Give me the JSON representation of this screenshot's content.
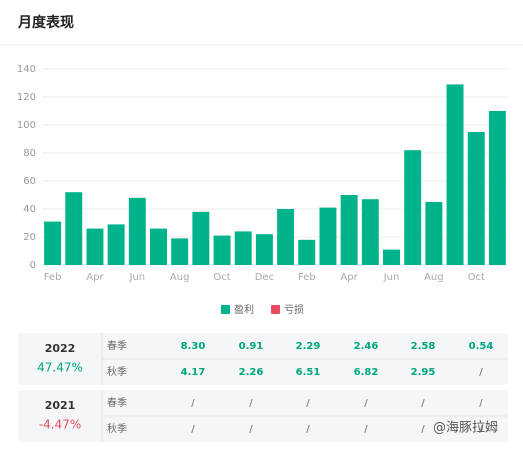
{
  "header": {
    "title": "月度表现"
  },
  "chart_data": {
    "type": "bar",
    "categories": [
      "Feb",
      null,
      "Apr",
      null,
      "Jun",
      null,
      "Aug",
      null,
      "Oct",
      null,
      "Dec",
      null,
      "Feb",
      null,
      "Apr",
      null,
      "Jun",
      null,
      "Aug",
      null,
      "Oct",
      null
    ],
    "series": [
      {
        "name": "盈利",
        "color": "#00b38a",
        "values": [
          31,
          52,
          26,
          29,
          48,
          26,
          19,
          38,
          21,
          24,
          22,
          40,
          18,
          41,
          50,
          47,
          11,
          82,
          45,
          129,
          95,
          110
        ]
      },
      {
        "name": "亏损",
        "color": "#e84a5f",
        "values": [
          null,
          null,
          null,
          null,
          null,
          null,
          null,
          null,
          null,
          null,
          null,
          null,
          null,
          null,
          null,
          null,
          null,
          null,
          null,
          null,
          null,
          null
        ]
      }
    ],
    "ylim": [
      0,
      140
    ],
    "yticks": [
      0,
      20,
      40,
      60,
      80,
      100,
      120,
      140
    ],
    "grid": true,
    "legend": "bottom"
  },
  "table": {
    "years": [
      {
        "year": "2022",
        "rate": "47.47%",
        "tone": "up",
        "rows": [
          {
            "season": "春季",
            "values": [
              "8.30",
              "0.91",
              "2.29",
              "2.46",
              "2.58",
              "0.54"
            ]
          },
          {
            "season": "秋季",
            "values": [
              "4.17",
              "2.26",
              "6.51",
              "6.82",
              "2.95",
              "/"
            ]
          }
        ]
      },
      {
        "year": "2021",
        "rate": "-4.47%",
        "tone": "down",
        "rows": [
          {
            "season": "春季",
            "values": [
              "/",
              "/",
              "/",
              "/",
              "/",
              "/"
            ]
          },
          {
            "season": "秋季",
            "values": [
              "/",
              "/",
              "/",
              "/",
              "/",
              "/"
            ]
          }
        ]
      }
    ]
  },
  "watermark": "@海豚拉姆"
}
